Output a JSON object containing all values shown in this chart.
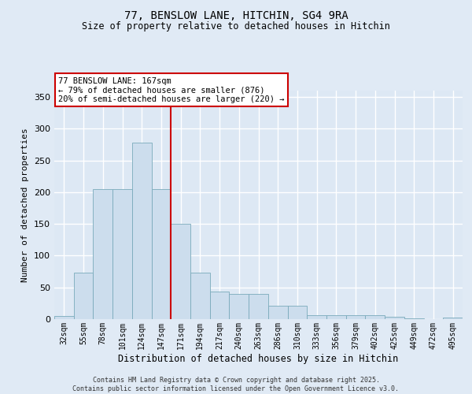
{
  "title_line1": "77, BENSLOW LANE, HITCHIN, SG4 9RA",
  "title_line2": "Size of property relative to detached houses in Hitchin",
  "xlabel": "Distribution of detached houses by size in Hitchin",
  "ylabel": "Number of detached properties",
  "bar_color": "#ccdded",
  "bar_edge_color": "#7aaabb",
  "vline_color": "#cc0000",
  "annotation_text": "77 BENSLOW LANE: 167sqm\n← 79% of detached houses are smaller (876)\n20% of semi-detached houses are larger (220) →",
  "annotation_box_edge_color": "#cc0000",
  "background_color": "#dde8f4",
  "grid_color": "#ffffff",
  "footer_text": "Contains HM Land Registry data © Crown copyright and database right 2025.\nContains public sector information licensed under the Open Government Licence v3.0.",
  "categories": [
    "32sqm",
    "55sqm",
    "78sqm",
    "101sqm",
    "124sqm",
    "147sqm",
    "171sqm",
    "194sqm",
    "217sqm",
    "240sqm",
    "263sqm",
    "286sqm",
    "310sqm",
    "333sqm",
    "356sqm",
    "379sqm",
    "402sqm",
    "425sqm",
    "449sqm",
    "472sqm",
    "495sqm"
  ],
  "values": [
    5,
    73,
    205,
    205,
    278,
    205,
    150,
    73,
    43,
    40,
    40,
    21,
    21,
    6,
    6,
    6,
    6,
    4,
    1,
    0,
    2
  ],
  "ylim": [
    0,
    360
  ],
  "yticks": [
    0,
    50,
    100,
    150,
    200,
    250,
    300,
    350
  ],
  "fig_bg_color": "#e0eaf5"
}
